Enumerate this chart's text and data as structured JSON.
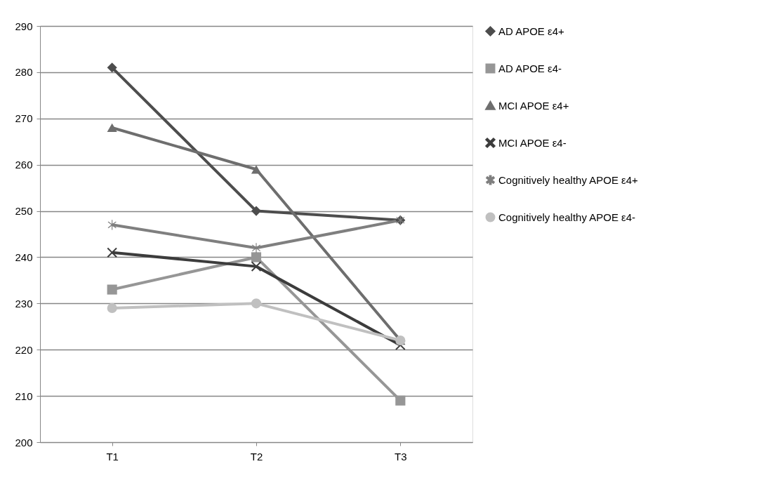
{
  "chart_data": {
    "type": "line",
    "categories": [
      "T1",
      "T2",
      "T3"
    ],
    "series": [
      {
        "name": "AD APOE ε4+",
        "color": "#4d4d4d",
        "marker": "diamond",
        "values": [
          281,
          250,
          248
        ]
      },
      {
        "name": "AD APOE ε4-",
        "color": "#969696",
        "marker": "square",
        "values": [
          233,
          240,
          209
        ]
      },
      {
        "name": "MCI APOE ε4+",
        "color": "#6e6e6e",
        "marker": "triangle",
        "values": [
          268,
          259,
          222
        ]
      },
      {
        "name": "MCI APOE ε4-",
        "color": "#3c3c3c",
        "marker": "cross",
        "values": [
          241,
          238,
          221
        ]
      },
      {
        "name": "Cognitively healthy APOE ε4+",
        "color": "#7f7f7f",
        "marker": "star",
        "values": [
          247,
          242,
          248
        ]
      },
      {
        "name": "Cognitively healthy APOE ε4-",
        "color": "#c0c0c0",
        "marker": "circle",
        "values": [
          229,
          230,
          222
        ]
      }
    ],
    "ylim": [
      200,
      290
    ],
    "yticks": [
      200,
      210,
      220,
      230,
      240,
      250,
      260,
      270,
      280,
      290
    ],
    "grid": "y",
    "legend": "right",
    "line_style": "solid"
  }
}
